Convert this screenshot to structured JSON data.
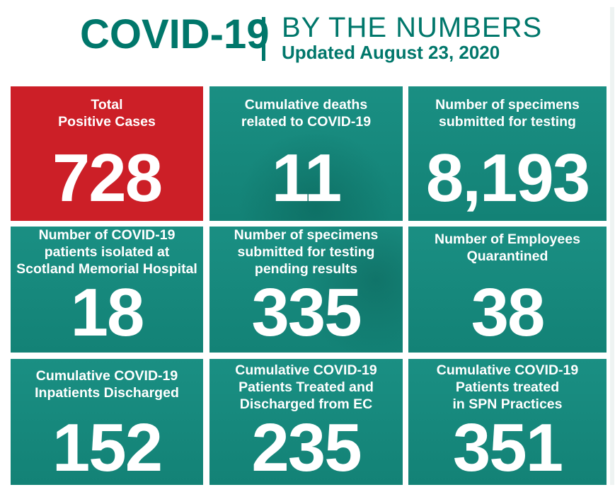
{
  "header": {
    "title": "COVID-19",
    "subtitle": "BY THE NUMBERS",
    "updated": "Updated August 23, 2020"
  },
  "tiles": [
    {
      "label": "Total\nPositive Cases",
      "value": "728"
    },
    {
      "label": "Cumulative deaths\nrelated to COVID-19",
      "value": "11"
    },
    {
      "label": "Number of specimens\nsubmitted for testing",
      "value": "8,193"
    },
    {
      "label": "Number of COVID-19\npatients isolated at\nScotland Memorial Hospital",
      "value": "18"
    },
    {
      "label": "Number of specimens\nsubmitted for testing\npending results",
      "value": "335"
    },
    {
      "label": "Number of Employees\nQuarantined",
      "value": "38"
    },
    {
      "label": "Cumulative COVID-19\nInpatients Discharged",
      "value": "152"
    },
    {
      "label": "Cumulative COVID-19\nPatients Treated and\nDischarged from EC",
      "value": "235"
    },
    {
      "label": "Cumulative COVID-19\nPatients treated\nin SPN Practices",
      "value": "351"
    }
  ],
  "colors": {
    "brand_teal": "#00776b",
    "tile_teal": "#138276",
    "tile_red": "#cc1f27"
  }
}
